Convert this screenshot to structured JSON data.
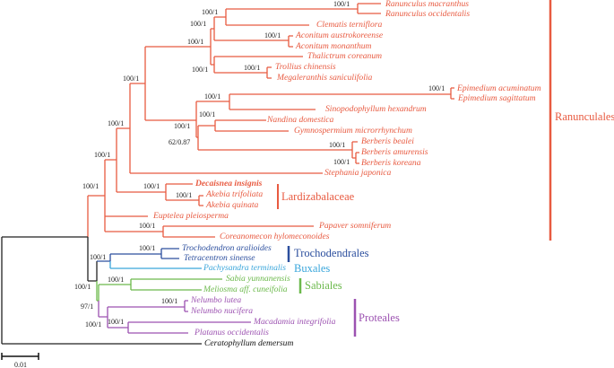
{
  "colors": {
    "ranunculales": "#e85a40",
    "trochodendrales": "#2c4f9e",
    "buxales": "#3aa6db",
    "sabiales": "#6cb94c",
    "proteales": "#9c52b1",
    "outgroup": "#222222"
  },
  "taxa": [
    "Ranunculus macranthus",
    "Ranunculus occidentalis",
    "Clematis terniflora",
    "Aconitum austrokoreense",
    "Aconitum monanthum",
    "Thalictrum coreanum",
    "Trollius chinensis",
    "Megaleranthis saniculifolia",
    "Epimedium acuminatum",
    "Epimedium sagittatum",
    "Sinopodophyllum hexandrum",
    "Nandina domestica",
    "Gymnospermium microrrhynchum",
    "Berberis bealei",
    "Berberis amurensis",
    "Berberis koreana",
    "Stephania japonica",
    "Decaisnea insignis",
    "Akebia trifoliata",
    "Akebia quinata",
    "Euptelea pleiosperma",
    "Papaver somniferum",
    "Coreanomecon hylomeconoides",
    "Trochodendron aralioides",
    "Tetracentron sinense",
    "Pachysandra terminalis",
    "Sabia yunnanensis",
    "Meliosma aff. cuneifolia",
    "Nelumbo lutea",
    "Nelumbo nucifera",
    "Macadamia integrifolia",
    "Platanus occidentalis",
    "Ceratophyllum demersum"
  ],
  "support": [
    "100/1",
    "100/1",
    "100/1",
    "100/1",
    "100/1",
    "100/1",
    "100/1",
    "100/1",
    "100/1",
    "100/1",
    "100/1",
    "62/0.87",
    "100/1",
    "100/1",
    "100/1",
    "100/1",
    "100/1",
    "100/1",
    "100/1",
    "100/1",
    "100/1",
    "100/1",
    "100/1",
    "100/1",
    "100/1",
    "100/1",
    "97/1",
    "100/1",
    "100/1"
  ],
  "clades": {
    "ranunculales": "Ranunculales",
    "lardizabalaceae": "Lardizabalaceae",
    "trochodendrales": "Trochodendrales",
    "buxales": "Buxales",
    "sabiales": "Sabiales",
    "proteales": "Proteales"
  },
  "scale_bar": {
    "label": "0.01"
  }
}
